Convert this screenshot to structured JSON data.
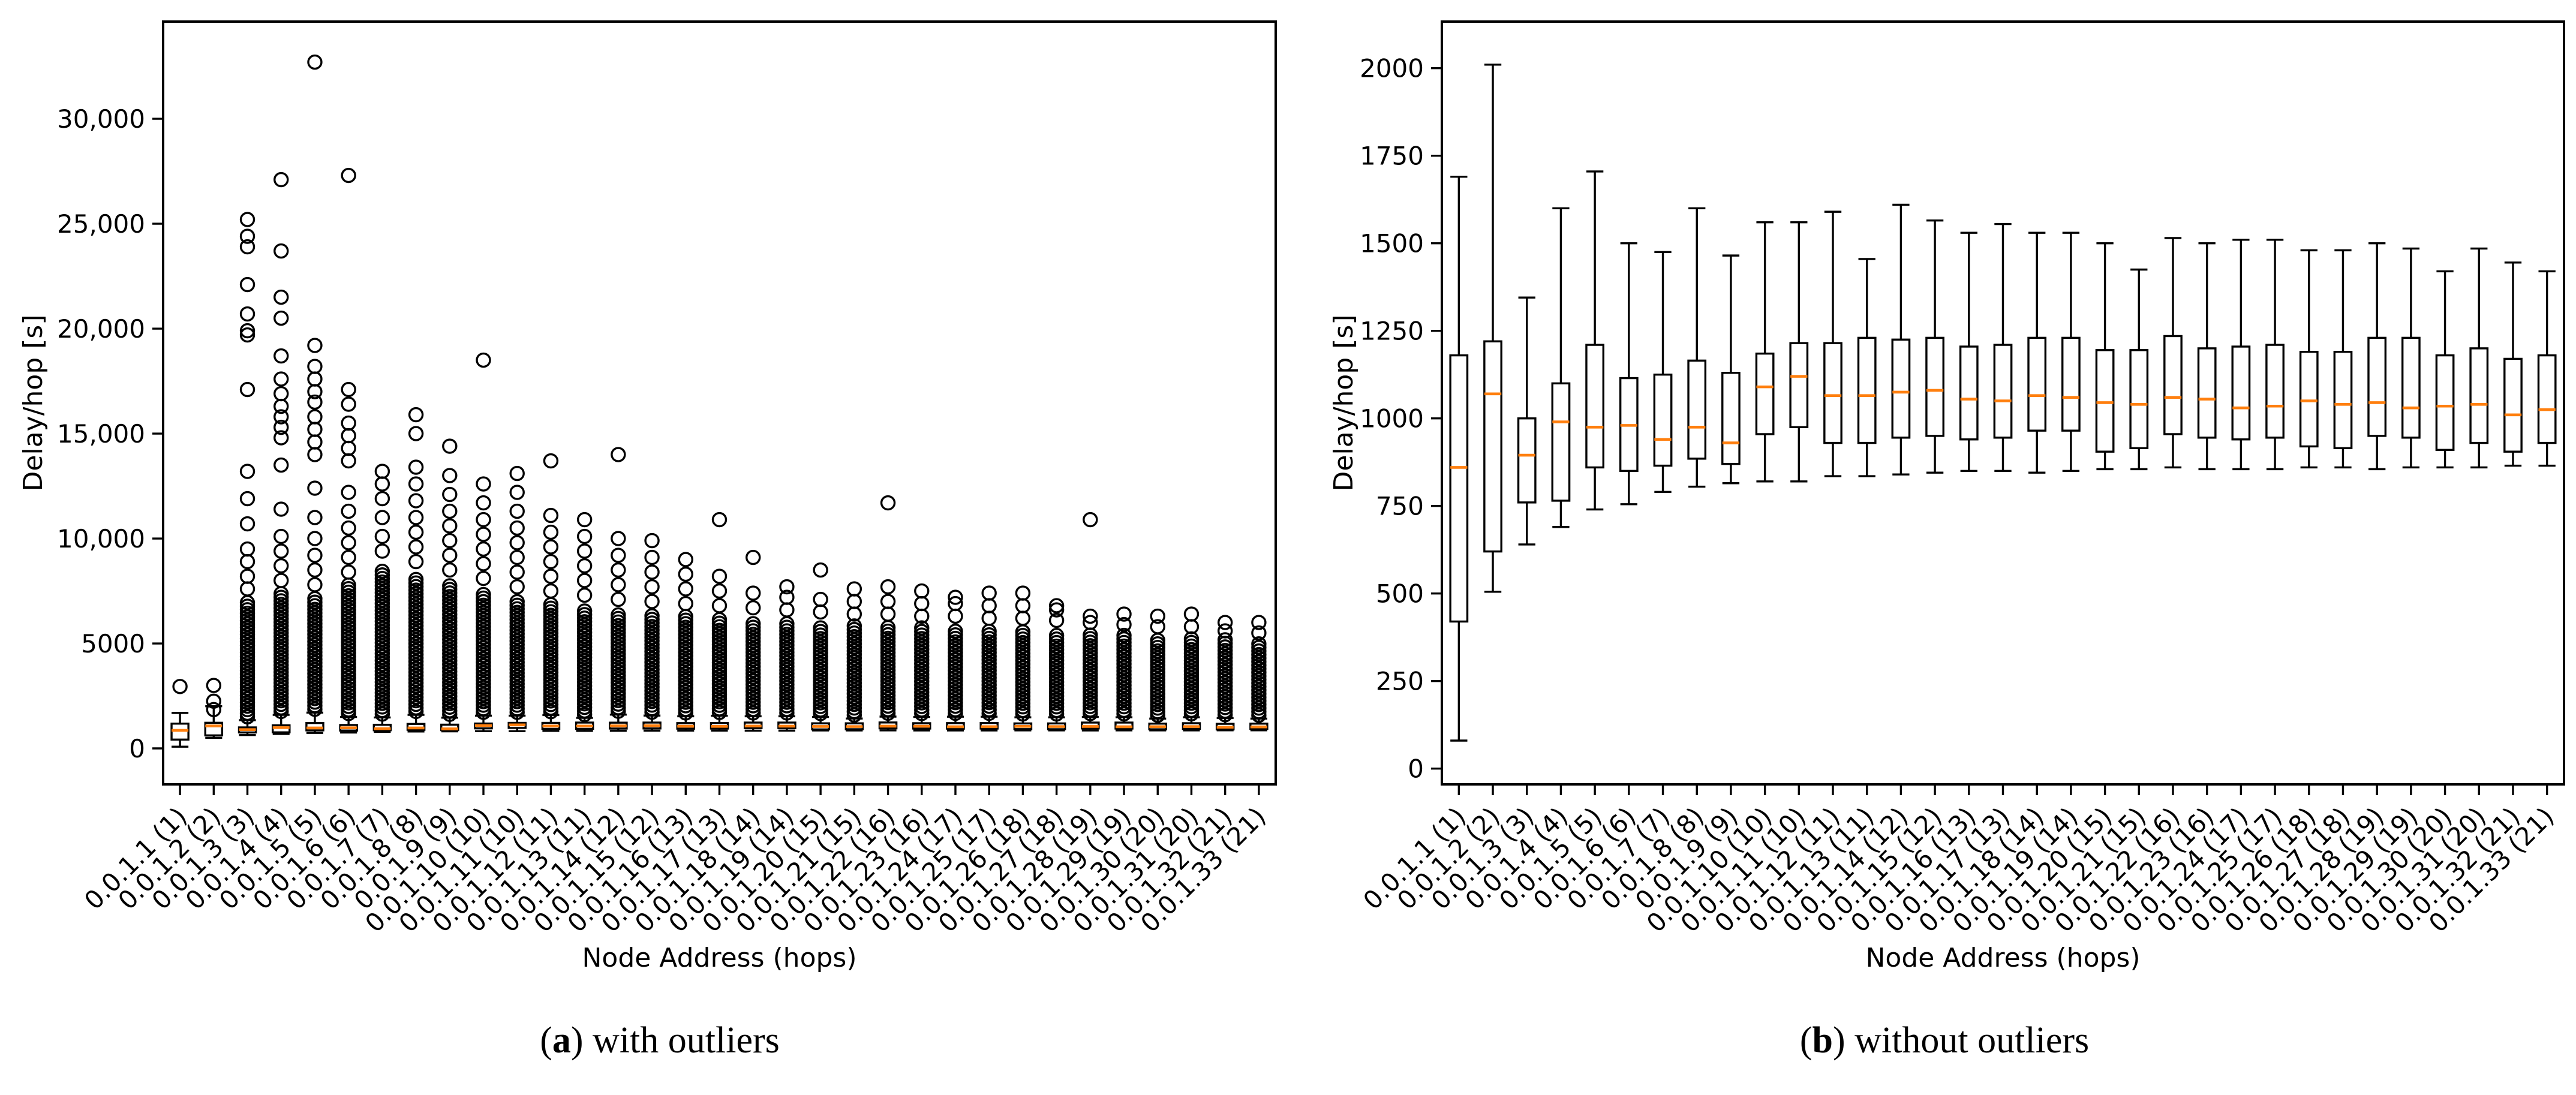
{
  "figure": {
    "background": "#ffffff",
    "line_color": "#000000"
  },
  "chart_data": {
    "type": "box",
    "grid": false,
    "legend": null,
    "colors": {
      "median": "#ff7f0e",
      "box_edge": "#000000",
      "outlier_edge": "#000000"
    },
    "categories": [
      "0.0.1.1 (1)",
      "0.0.1.2 (2)",
      "0.0.1.3 (3)",
      "0.0.1.4 (4)",
      "0.0.1.5 (5)",
      "0.0.1.6 (6)",
      "0.0.1.7 (7)",
      "0.0.1.8 (8)",
      "0.0.1.9 (9)",
      "0.0.1.10 (10)",
      "0.0.1.11 (10)",
      "0.0.1.12 (11)",
      "0.0.1.13 (11)",
      "0.0.1.14 (12)",
      "0.0.1.15 (12)",
      "0.0.1.16 (13)",
      "0.0.1.17 (13)",
      "0.0.1.18 (14)",
      "0.0.1.19 (14)",
      "0.0.1.20 (15)",
      "0.0.1.21 (15)",
      "0.0.1.22 (16)",
      "0.0.1.23 (16)",
      "0.0.1.24 (17)",
      "0.0.1.25 (17)",
      "0.0.1.26 (18)",
      "0.0.1.27 (18)",
      "0.0.1.28 (19)",
      "0.0.1.29 (19)",
      "0.0.1.30 (20)",
      "0.0.1.31 (20)",
      "0.0.1.32 (21)",
      "0.0.1.33 (21)"
    ],
    "box_stats": [
      {
        "wlo": 80,
        "q1": 420,
        "med": 860,
        "q3": 1180,
        "whi": 1690
      },
      {
        "wlo": 505,
        "q1": 620,
        "med": 1070,
        "q3": 1220,
        "whi": 2010
      },
      {
        "wlo": 640,
        "q1": 760,
        "med": 895,
        "q3": 1000,
        "whi": 1345
      },
      {
        "wlo": 690,
        "q1": 765,
        "med": 990,
        "q3": 1100,
        "whi": 1600
      },
      {
        "wlo": 740,
        "q1": 860,
        "med": 975,
        "q3": 1210,
        "whi": 1705
      },
      {
        "wlo": 755,
        "q1": 850,
        "med": 980,
        "q3": 1115,
        "whi": 1500
      },
      {
        "wlo": 790,
        "q1": 865,
        "med": 940,
        "q3": 1125,
        "whi": 1475
      },
      {
        "wlo": 805,
        "q1": 885,
        "med": 975,
        "q3": 1165,
        "whi": 1600
      },
      {
        "wlo": 815,
        "q1": 870,
        "med": 930,
        "q3": 1130,
        "whi": 1465
      },
      {
        "wlo": 820,
        "q1": 955,
        "med": 1090,
        "q3": 1185,
        "whi": 1560
      },
      {
        "wlo": 820,
        "q1": 975,
        "med": 1120,
        "q3": 1215,
        "whi": 1560
      },
      {
        "wlo": 835,
        "q1": 930,
        "med": 1065,
        "q3": 1215,
        "whi": 1590
      },
      {
        "wlo": 835,
        "q1": 930,
        "med": 1065,
        "q3": 1230,
        "whi": 1455
      },
      {
        "wlo": 840,
        "q1": 945,
        "med": 1075,
        "q3": 1225,
        "whi": 1610
      },
      {
        "wlo": 845,
        "q1": 950,
        "med": 1080,
        "q3": 1230,
        "whi": 1565
      },
      {
        "wlo": 850,
        "q1": 940,
        "med": 1055,
        "q3": 1205,
        "whi": 1530
      },
      {
        "wlo": 850,
        "q1": 945,
        "med": 1050,
        "q3": 1210,
        "whi": 1555
      },
      {
        "wlo": 845,
        "q1": 965,
        "med": 1065,
        "q3": 1230,
        "whi": 1530
      },
      {
        "wlo": 850,
        "q1": 965,
        "med": 1060,
        "q3": 1230,
        "whi": 1530
      },
      {
        "wlo": 855,
        "q1": 905,
        "med": 1045,
        "q3": 1195,
        "whi": 1500
      },
      {
        "wlo": 855,
        "q1": 915,
        "med": 1040,
        "q3": 1195,
        "whi": 1425
      },
      {
        "wlo": 860,
        "q1": 955,
        "med": 1060,
        "q3": 1235,
        "whi": 1515
      },
      {
        "wlo": 855,
        "q1": 945,
        "med": 1055,
        "q3": 1200,
        "whi": 1500
      },
      {
        "wlo": 855,
        "q1": 940,
        "med": 1030,
        "q3": 1205,
        "whi": 1510
      },
      {
        "wlo": 855,
        "q1": 945,
        "med": 1035,
        "q3": 1210,
        "whi": 1510
      },
      {
        "wlo": 860,
        "q1": 920,
        "med": 1050,
        "q3": 1190,
        "whi": 1480
      },
      {
        "wlo": 860,
        "q1": 915,
        "med": 1040,
        "q3": 1190,
        "whi": 1480
      },
      {
        "wlo": 855,
        "q1": 950,
        "med": 1045,
        "q3": 1230,
        "whi": 1500
      },
      {
        "wlo": 860,
        "q1": 945,
        "med": 1030,
        "q3": 1230,
        "whi": 1485
      },
      {
        "wlo": 860,
        "q1": 910,
        "med": 1035,
        "q3": 1180,
        "whi": 1420
      },
      {
        "wlo": 860,
        "q1": 930,
        "med": 1040,
        "q3": 1200,
        "whi": 1485
      },
      {
        "wlo": 865,
        "q1": 905,
        "med": 1010,
        "q3": 1170,
        "whi": 1445
      },
      {
        "wlo": 865,
        "q1": 930,
        "med": 1025,
        "q3": 1180,
        "whi": 1420
      }
    ],
    "panels": [
      {
        "id": "a",
        "caption": {
          "prefix": "(",
          "letter": "a",
          "suffix": ")",
          "text": " with outliers"
        },
        "xlabel": "Node Address (hops)",
        "ylabel": "Delay/hop [s]",
        "ylim": [
          -1714,
          34630
        ],
        "yticks": [
          {
            "v": 0,
            "l": "0"
          },
          {
            "v": 5000,
            "l": "5000"
          },
          {
            "v": 10000,
            "l": "10,000"
          },
          {
            "v": 15000,
            "l": "15,000"
          },
          {
            "v": 20000,
            "l": "20,000"
          },
          {
            "v": 25000,
            "l": "25,000"
          },
          {
            "v": 30000,
            "l": "30,000"
          }
        ],
        "show_outliers": true,
        "outliers": [
          {
            "t": 0,
            "s": [
              2950
            ]
          },
          {
            "t": 0,
            "s": [
              1850,
              2250,
              3000
            ]
          },
          {
            "t": 7000,
            "s": [
              7600,
              8200,
              8900,
              9500,
              10700,
              11900,
              13200,
              17100,
              19700,
              19900,
              20700,
              22100,
              23900,
              24400,
              25200
            ]
          },
          {
            "t": 7400,
            "s": [
              8000,
              8700,
              9400,
              10100,
              11400,
              13500,
              14800,
              15300,
              15800,
              16300,
              16900,
              17600,
              18700,
              20500,
              21500,
              23700,
              27100
            ]
          },
          {
            "t": 7200,
            "s": [
              7800,
              8500,
              9200,
              10000,
              11000,
              12400,
              14000,
              14600,
              15200,
              15800,
              16500,
              17000,
              17600,
              18200,
              19200,
              32700
            ]
          },
          {
            "t": 7800,
            "s": [
              8400,
              9100,
              9800,
              10500,
              11300,
              12200,
              13700,
              14300,
              14900,
              15500,
              16400,
              17100,
              27300
            ]
          },
          {
            "t": 8600,
            "s": [
              9400,
              10100,
              11000,
              11900,
              12600,
              13200
            ]
          },
          {
            "t": 8200,
            "s": [
              8900,
              9600,
              10300,
              11000,
              11800,
              12600,
              13400,
              15000,
              15900
            ]
          },
          {
            "t": 7800,
            "s": [
              8500,
              9200,
              9900,
              10600,
              11300,
              12100,
              13000,
              14400
            ]
          },
          {
            "t": 7400,
            "s": [
              8100,
              8800,
              9500,
              10200,
              10900,
              11700,
              12600,
              18500
            ]
          },
          {
            "t": 7100,
            "s": [
              7700,
              8400,
              9100,
              9800,
              10500,
              11300,
              12200,
              13100
            ]
          },
          {
            "t": 6900,
            "s": [
              7500,
              8200,
              8900,
              9600,
              10300,
              11100,
              13700
            ]
          },
          {
            "t": 6700,
            "s": [
              7300,
              8000,
              8700,
              9400,
              10100,
              10900
            ]
          },
          {
            "t": 6500,
            "s": [
              7100,
              7800,
              8500,
              9200,
              10000,
              14000
            ]
          },
          {
            "t": 6400,
            "s": [
              7000,
              7700,
              8400,
              9100,
              9900
            ]
          },
          {
            "t": 6300,
            "s": [
              6900,
              7600,
              8300,
              9000
            ]
          },
          {
            "t": 6200,
            "s": [
              6800,
              7500,
              8200,
              10900
            ]
          },
          {
            "t": 6100,
            "s": [
              6700,
              7400,
              9100
            ]
          },
          {
            "t": 6000,
            "s": [
              6600,
              7200,
              7700
            ]
          },
          {
            "t": 5900,
            "s": [
              6500,
              7100,
              8500
            ]
          },
          {
            "t": 5900,
            "s": [
              6400,
              7000,
              7600
            ]
          },
          {
            "t": 5800,
            "s": [
              6400,
              7000,
              7700,
              11700
            ]
          },
          {
            "t": 5800,
            "s": [
              6300,
              6900,
              7500
            ]
          },
          {
            "t": 5700,
            "s": [
              6300,
              6900,
              7200
            ]
          },
          {
            "t": 5700,
            "s": [
              6200,
              6800,
              7400
            ]
          },
          {
            "t": 5600,
            "s": [
              6200,
              6800,
              7400
            ]
          },
          {
            "t": 5500,
            "s": [
              6100,
              6600,
              6800
            ]
          },
          {
            "t": 5500,
            "s": [
              6000,
              6300,
              10900
            ]
          },
          {
            "t": 5400,
            "s": [
              5900,
              6400
            ]
          },
          {
            "t": 5300,
            "s": [
              5800,
              6300
            ]
          },
          {
            "t": 5300,
            "s": [
              5800,
              6400
            ]
          },
          {
            "t": 5200,
            "s": [
              5600,
              6000
            ]
          },
          {
            "t": 5100,
            "s": [
              5500,
              6000
            ]
          }
        ]
      },
      {
        "id": "b",
        "caption": {
          "prefix": "(",
          "letter": "b",
          "suffix": ")",
          "text": " without outliers"
        },
        "xlabel": "Node Address (hops)",
        "ylabel": "Delay/hop [s]",
        "ylim": [
          -45,
          2133
        ],
        "yticks": [
          {
            "v": 0,
            "l": "0"
          },
          {
            "v": 250,
            "l": "250"
          },
          {
            "v": 500,
            "l": "500"
          },
          {
            "v": 750,
            "l": "750"
          },
          {
            "v": 1000,
            "l": "1000"
          },
          {
            "v": 1250,
            "l": "1250"
          },
          {
            "v": 1500,
            "l": "1500"
          },
          {
            "v": 1750,
            "l": "1750"
          },
          {
            "v": 2000,
            "l": "2000"
          }
        ],
        "show_outliers": false,
        "outliers": []
      }
    ]
  }
}
